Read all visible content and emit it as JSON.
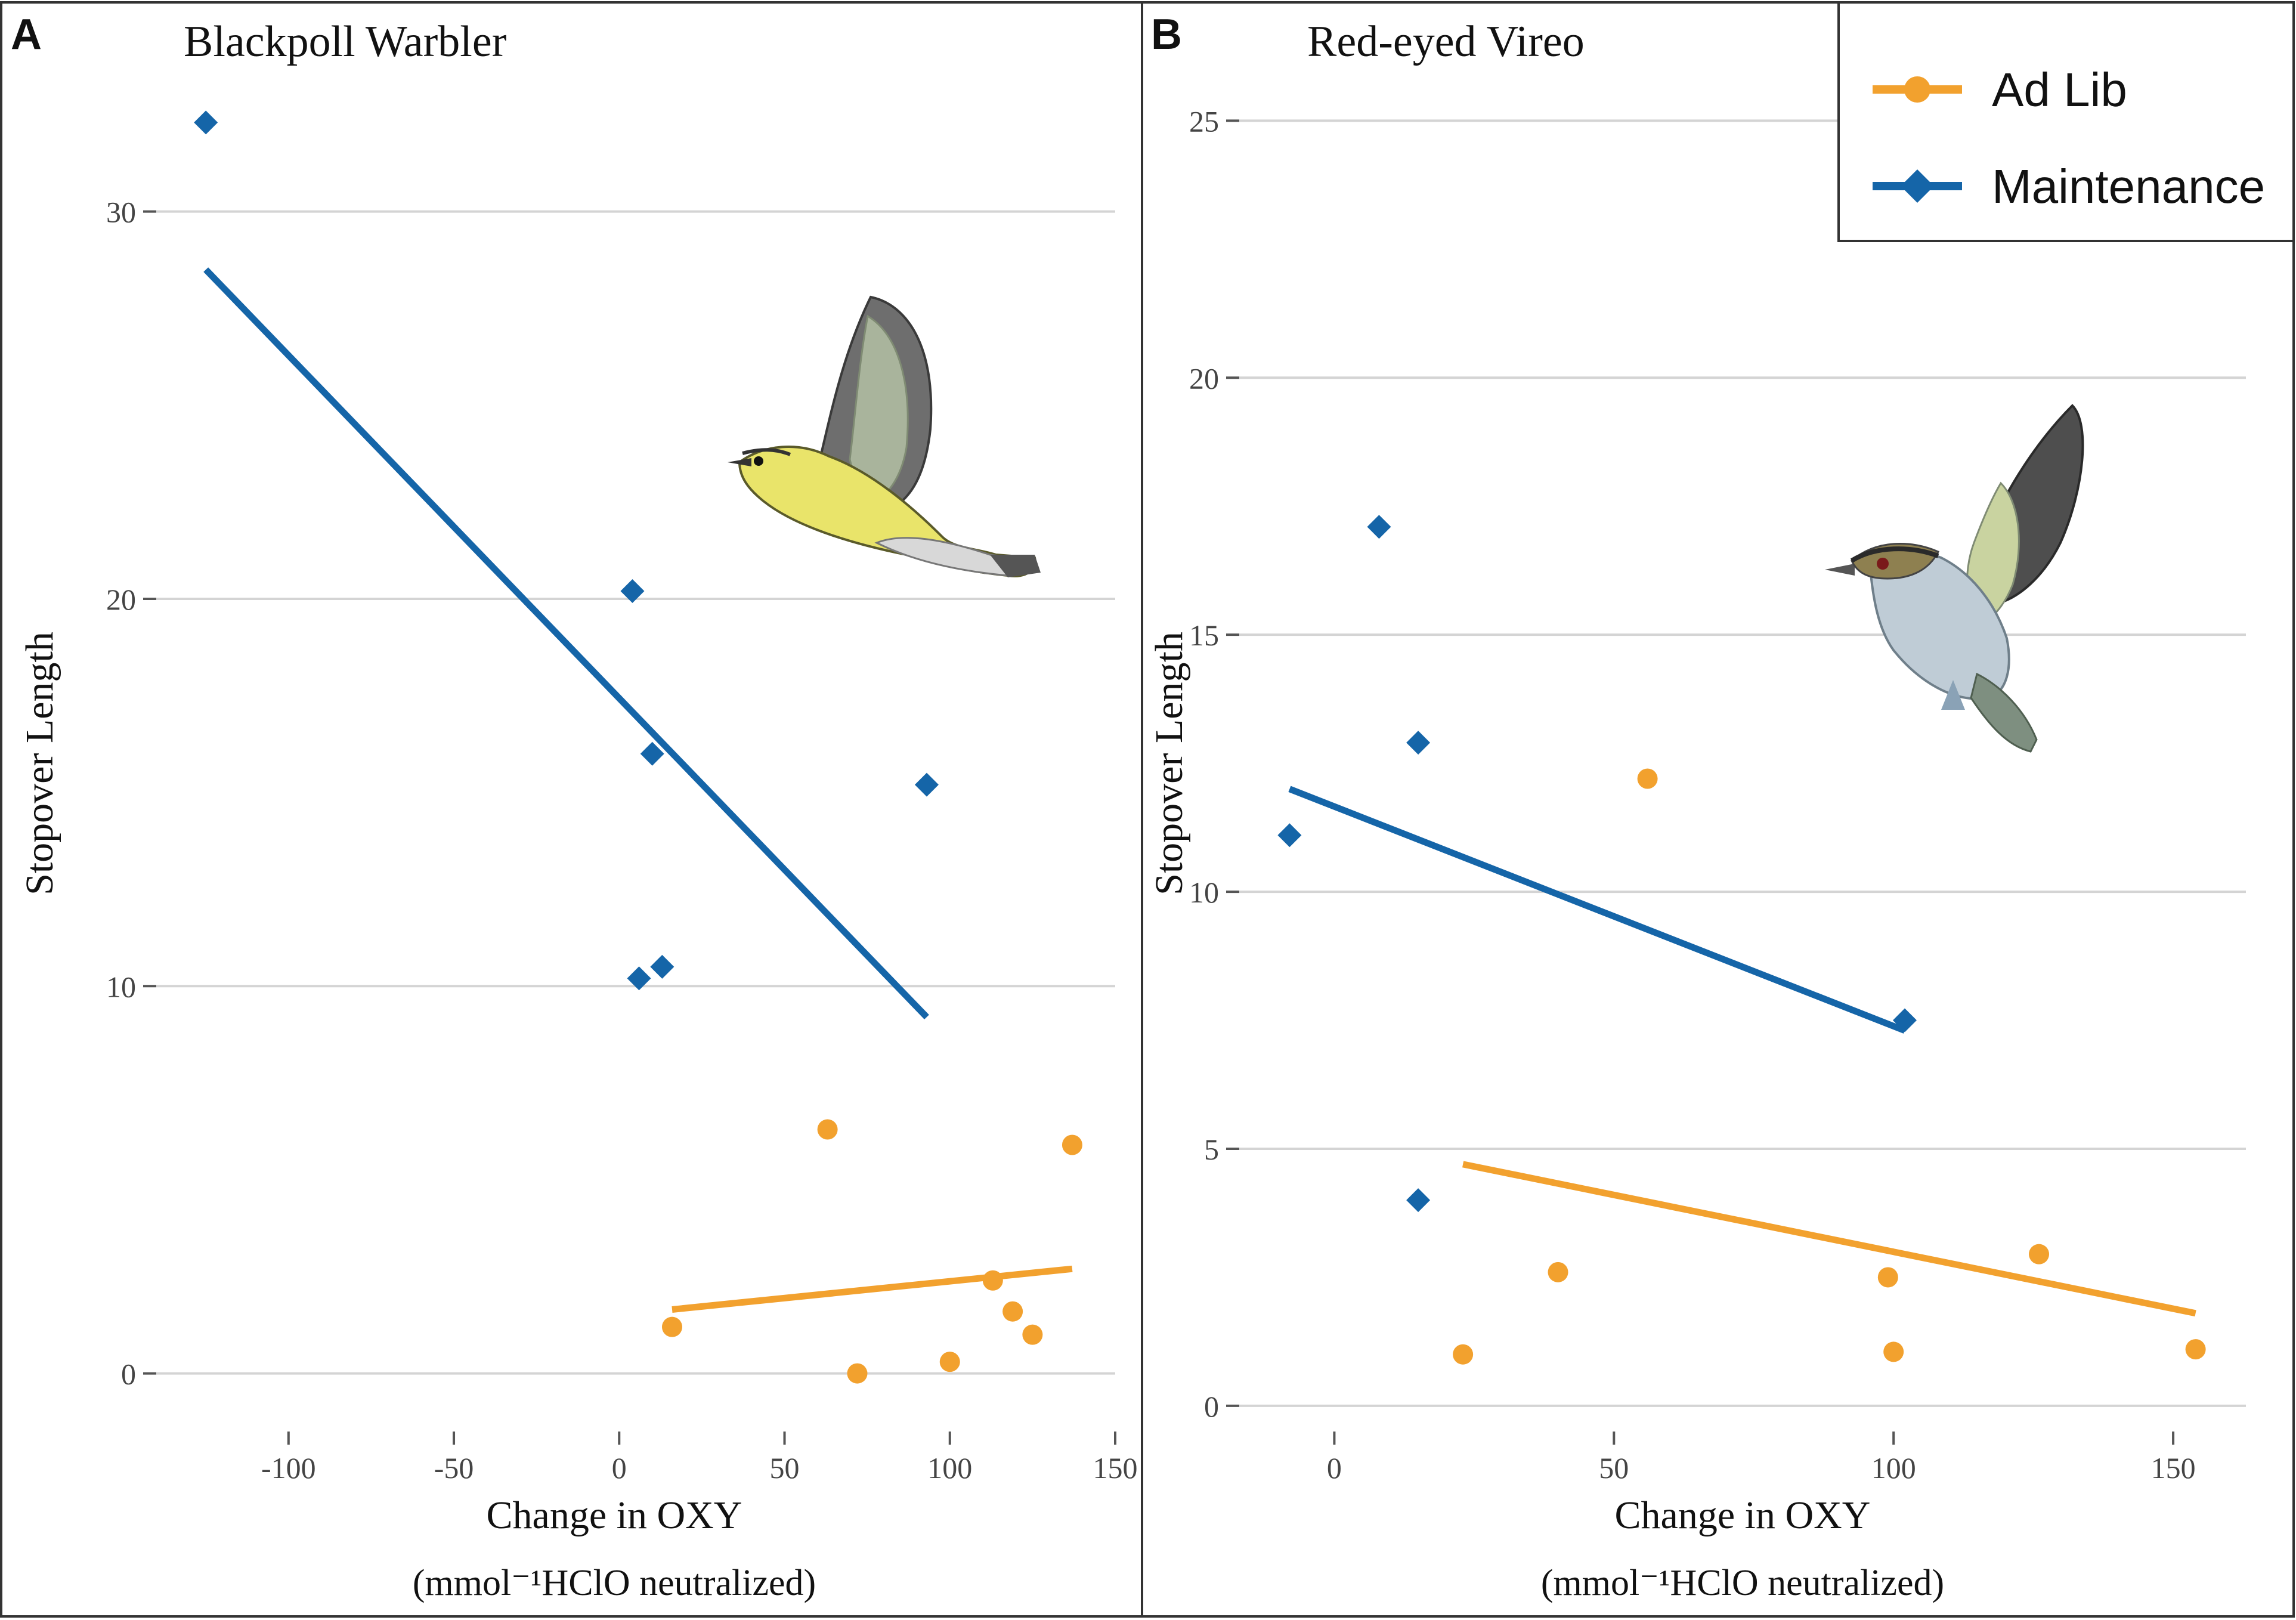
{
  "colors": {
    "ad_lib": "#F2A12E",
    "maintenance": "#1565A8",
    "grid": "#D4D4D4",
    "frame": "#333333",
    "text": "#111111"
  },
  "legend": {
    "items": [
      {
        "label": "Ad Lib",
        "marker": "circle",
        "color": "#F2A12E"
      },
      {
        "label": "Maintenance",
        "marker": "diamond",
        "color": "#1565A8"
      }
    ]
  },
  "chart_data": [
    {
      "type": "scatter",
      "panel_label": "A",
      "title": "Blackpoll Warbler",
      "xlabel": "Change in OXY",
      "xlabel_units": "(mmol⁻¹HClO neutralized)",
      "ylabel": "Stopover Length",
      "xlim": [
        -140,
        150
      ],
      "ylim": [
        -1.5,
        35
      ],
      "x_ticks": [
        -100,
        -50,
        0,
        50,
        100,
        150
      ],
      "x_tick_labels": [
        "-100",
        "-50",
        "0",
        "50",
        "100",
        "150"
      ],
      "y_ticks": [
        0,
        10,
        20,
        30
      ],
      "y_tick_labels": [
        "0",
        "10",
        "20",
        "30"
      ],
      "grid": "horizontal",
      "illustration": "blackpoll-warbler",
      "series": [
        {
          "name": "Maintenance",
          "marker": "diamond",
          "points": [
            [
              -125,
              32.3
            ],
            [
              4,
              20.2
            ],
            [
              10,
              16.0
            ],
            [
              93,
              15.2
            ],
            [
              6,
              10.2
            ],
            [
              13,
              10.5
            ]
          ],
          "trend": [
            [
              -125,
              28.5
            ],
            [
              93,
              9.2
            ]
          ]
        },
        {
          "name": "Ad Lib",
          "marker": "circle",
          "points": [
            [
              16,
              1.2
            ],
            [
              63,
              6.3
            ],
            [
              72,
              0.0
            ],
            [
              100,
              0.3
            ],
            [
              113,
              2.4
            ],
            [
              119,
              1.6
            ],
            [
              125,
              1.0
            ],
            [
              137,
              5.9
            ]
          ],
          "trend": [
            [
              16,
              1.65
            ],
            [
              137,
              2.7
            ]
          ]
        }
      ]
    },
    {
      "type": "scatter",
      "panel_label": "B",
      "title": "Red-eyed Vireo",
      "xlabel": "Change in OXY",
      "xlabel_units": "(mmol⁻¹HClO neutralized)",
      "ylabel": "Stopover Length",
      "xlim": [
        -17,
        163
      ],
      "ylim": [
        -0.5,
        27
      ],
      "x_ticks": [
        0,
        50,
        100,
        150
      ],
      "x_tick_labels": [
        "0",
        "50",
        "100",
        "150"
      ],
      "y_ticks": [
        0,
        5,
        10,
        15,
        20,
        25
      ],
      "y_tick_labels": [
        "0",
        "5",
        "10",
        "15",
        "20",
        "25"
      ],
      "grid": "horizontal",
      "illustration": "red-eyed-vireo",
      "series": [
        {
          "name": "Maintenance",
          "marker": "diamond",
          "points": [
            [
              8,
              17.1
            ],
            [
              15,
              12.9
            ],
            [
              -8,
              11.1
            ],
            [
              102,
              7.5
            ],
            [
              15,
              4.0
            ]
          ],
          "trend": [
            [
              -8,
              12.0
            ],
            [
              102,
              7.3
            ]
          ]
        },
        {
          "name": "Ad Lib",
          "marker": "circle",
          "points": [
            [
              56,
              12.2
            ],
            [
              23,
              1.0
            ],
            [
              40,
              2.6
            ],
            [
              99,
              2.5
            ],
            [
              100,
              1.05
            ],
            [
              126,
              2.95
            ],
            [
              154,
              1.1
            ]
          ],
          "trend": [
            [
              23,
              4.7
            ],
            [
              154,
              1.8
            ]
          ]
        }
      ]
    }
  ]
}
